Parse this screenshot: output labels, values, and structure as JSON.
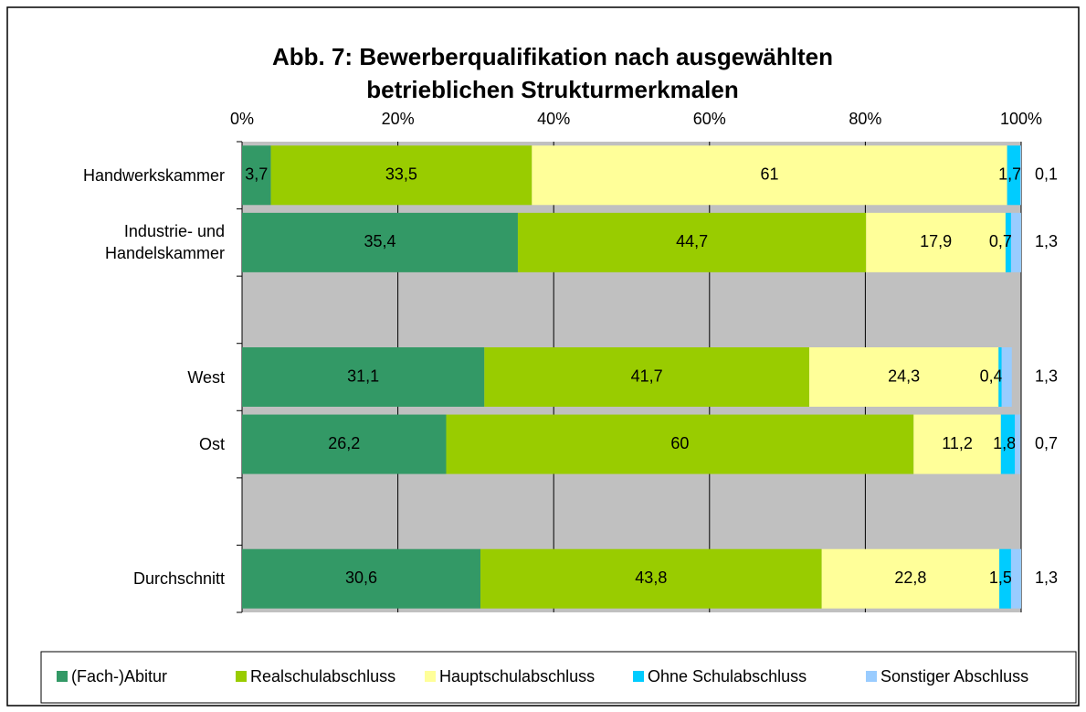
{
  "chart_data": {
    "type": "stacked-barh",
    "title": "Abb. 7: Bewerberqualifikation nach ausgewählten\nbetrieblichen Strukturmerkmalen",
    "categories": [
      "Handwerkskammer",
      "Industrie- und\nHandelskammer",
      null,
      "West",
      "Ost",
      null,
      "Durchschnitt"
    ],
    "series": [
      {
        "name": "(Fach-)Abitur",
        "color": "#339966",
        "values": [
          3.7,
          35.4,
          null,
          31.1,
          26.2,
          null,
          30.6
        ],
        "value_labels": [
          "3,7",
          "35,4",
          null,
          "31,1",
          "26,2",
          null,
          "30,6"
        ]
      },
      {
        "name": "Realschulabschluss",
        "color": "#99cc00",
        "values": [
          33.5,
          44.7,
          null,
          41.7,
          60,
          null,
          43.8
        ],
        "value_labels": [
          "33,5",
          "44,7",
          null,
          "41,7",
          "60",
          null,
          "43,8"
        ]
      },
      {
        "name": "Hauptschulabschluss",
        "color": "#ffff99",
        "values": [
          61,
          17.9,
          null,
          24.3,
          11.2,
          null,
          22.8
        ],
        "value_labels": [
          "61",
          "17,9",
          null,
          "24,3",
          "11,2",
          null,
          "22,8"
        ]
      },
      {
        "name": "Ohne Schulabschluss",
        "color": "#00ccff",
        "values": [
          1.7,
          0.7,
          null,
          0.4,
          1.8,
          null,
          1.5
        ],
        "value_labels": [
          "1,7",
          "0,7",
          null,
          "0,4",
          "1,8",
          null,
          "1,5"
        ]
      },
      {
        "name": "Sonstiger Abschluss",
        "color": "#99ccff",
        "values": [
          0.1,
          1.3,
          null,
          1.3,
          0.7,
          null,
          1.3
        ],
        "value_labels": [
          "0,1",
          "1,3",
          null,
          "1,3",
          "0,7",
          null,
          "1,3"
        ]
      }
    ],
    "xlim": [
      0,
      100
    ],
    "xticks": [
      {
        "value": 0,
        "label": "0%"
      },
      {
        "value": 20,
        "label": "20%"
      },
      {
        "value": 40,
        "label": "40%"
      },
      {
        "value": 60,
        "label": "60%"
      },
      {
        "value": 80,
        "label": "80%"
      },
      {
        "value": 100,
        "label": "100%"
      }
    ],
    "grid": true,
    "legend": "bottom"
  }
}
